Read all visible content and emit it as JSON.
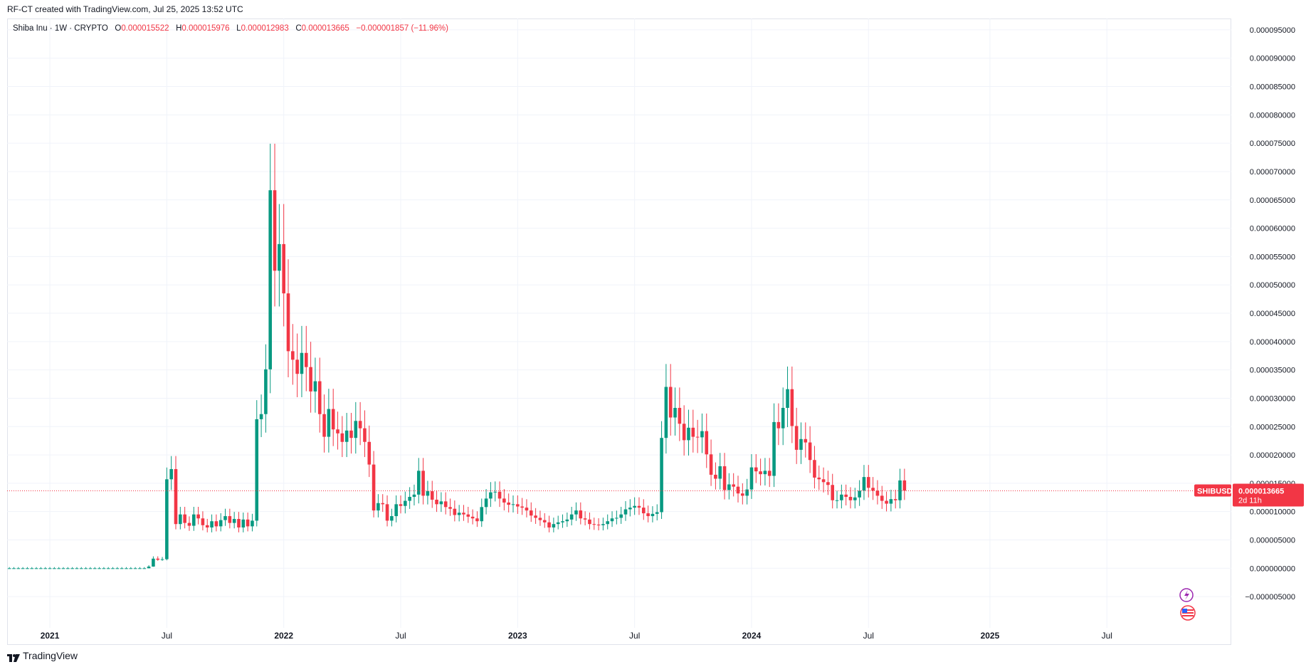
{
  "header": {
    "credit": "RF-CT created with TradingView.com, Jul 25, 2025 13:52 UTC"
  },
  "legend": {
    "symbol": "Shiba Inu · 1W · CRYPTO",
    "o_label": "O",
    "o": "0.000015522",
    "h_label": "H",
    "h": "0.000015976",
    "l_label": "L",
    "l": "0.000012983",
    "c_label": "C",
    "c": "0.000013665",
    "change": "−0.000001857 (−11.96%)"
  },
  "price_tag": {
    "symbol": "SHIBUSD",
    "price": "0.000013665",
    "countdown": "2d 11h"
  },
  "footer": {
    "brand": "TradingView"
  },
  "colors": {
    "up": "#089981",
    "down": "#f23645",
    "grid": "#f0f3fa",
    "axis_text": "#131722"
  },
  "icons": [
    "lightning-icon",
    "us-flag-icon",
    "tradingview-logo-icon"
  ],
  "chart_data": {
    "type": "candlestick",
    "title": "Shiba Inu · 1W · CRYPTO",
    "ylim": [
      -8e-06,
      9.7e-05
    ],
    "y_ticks": [
      "−0.000005000",
      "0.000000000",
      "0.000005000",
      "0.000010000",
      "0.000015000",
      "0.000020000",
      "0.000025000",
      "0.000030000",
      "0.000035000",
      "0.000040000",
      "0.000045000",
      "0.000050000",
      "0.000055000",
      "0.000060000",
      "0.000065000",
      "0.000070000",
      "0.000075000",
      "0.000080000",
      "0.000085000",
      "0.000090000",
      "0.000095000"
    ],
    "x_ticks": [
      "2021",
      "Jul",
      "2022",
      "Jul",
      "2023",
      "Jul",
      "2024",
      "Jul",
      "2025",
      "Jul"
    ],
    "x_tick_week_index": [
      9,
      35,
      61,
      87,
      113,
      139,
      165,
      191,
      218,
      244
    ],
    "last_price": 1.3665e-05,
    "grid": true,
    "candles_close_weekly": [
      0,
      0,
      0,
      0,
      0,
      0,
      0,
      0,
      0,
      0,
      0,
      0,
      0,
      0,
      0,
      0,
      0,
      0,
      0,
      0,
      0,
      0,
      0,
      0,
      0,
      0,
      0,
      0,
      0,
      0,
      0,
      3e-07,
      1.7e-06,
      1.5e-06,
      1.6e-06,
      1.57e-05,
      1.75e-05,
      7.8e-06,
      9.5e-06,
      8e-06,
      7.5e-06,
      9.5e-06,
      8.8e-06,
      7.6e-06,
      7.2e-06,
      8.3e-06,
      7.4e-06,
      8.5e-06,
      9.2e-06,
      8e-06,
      8.7e-06,
      7.2e-06,
      8.6e-06,
      7.4e-06,
      8.4e-06,
      2.63e-05,
      2.72e-05,
      3.51e-05,
      6.67e-05,
      5.25e-05,
      5.72e-05,
      4.85e-05,
      3.83e-05,
      3.68e-05,
      3.43e-05,
      3.8e-05,
      3.55e-05,
      3.12e-05,
      3.3e-05,
      2.72e-05,
      2.32e-05,
      2.81e-05,
      2.45e-05,
      2.38e-05,
      2.23e-05,
      2.43e-05,
      2.3e-05,
      2.6e-05,
      2.47e-05,
      2.23e-05,
      1.83e-05,
      1.02e-05,
      1.15e-05,
      1.13e-05,
      8.4e-06,
      9.2e-06,
      1.13e-05,
      1.1e-05,
      1.19e-05,
      1.26e-05,
      1.3e-05,
      1.72e-05,
      1.28e-05,
      1.36e-05,
      1.21e-05,
      1.13e-05,
      1.18e-05,
      1.08e-05,
      1.05e-05,
      9.4e-06,
      9.8e-06,
      9.5e-06,
      9.1e-06,
      8.8e-06,
      8.3e-06,
      1.08e-05,
      1.23e-05,
      1.34e-05,
      1.35e-05,
      1.23e-05,
      1.16e-05,
      1.12e-05,
      1.13e-05,
      1.09e-05,
      1.07e-05,
      1.02e-05,
      9.3e-06,
      8.9e-06,
      8.5e-06,
      8.1e-06,
      7.2e-06,
      7.8e-06,
      8.1e-06,
      8.3e-06,
      8.6e-06,
      9.5e-06,
      1.02e-05,
      8.8e-06,
      8.6e-06,
      7.8e-06,
      7.7e-06,
      7.6e-06,
      7.8e-06,
      8.3e-06,
      8.8e-06,
      8.9e-06,
      9.5e-06,
      1.04e-05,
      1.07e-05,
      1.1e-05,
      1.07e-05,
      9.7e-06,
      9.2e-06,
      9.6e-06,
      9.9e-06,
      2.3e-05,
      3.2e-05,
      2.66e-05,
      2.83e-05,
      2.55e-05,
      2.26e-05,
      2.48e-05,
      2.32e-05,
      2.31e-05,
      2.42e-05,
      2.01e-05,
      1.65e-05,
      1.58e-05,
      1.8e-05,
      1.38e-05,
      1.48e-05,
      1.44e-05,
      1.32e-05,
      1.28e-05,
      1.39e-05,
      1.78e-05,
      1.71e-05,
      1.66e-05,
      1.72e-05,
      1.63e-05,
      2.58e-05,
      2.47e-05,
      2.83e-05,
      3.16e-05,
      2.51e-05,
      2.09e-05,
      2.28e-05,
      2.22e-05,
      1.91e-05,
      1.6e-05,
      1.57e-05,
      1.52e-05,
      1.47e-05,
      1.2e-05,
      1.2e-05,
      1.3e-05,
      1.26e-05,
      1.2e-05,
      1.25e-05,
      1.37e-05,
      1.61e-05,
      1.42e-05,
      1.37e-05,
      1.28e-05,
      1.19e-05,
      1.14e-05,
      1.22e-05,
      1.2e-05,
      1.55e-05,
      1.37e-05
    ]
  }
}
